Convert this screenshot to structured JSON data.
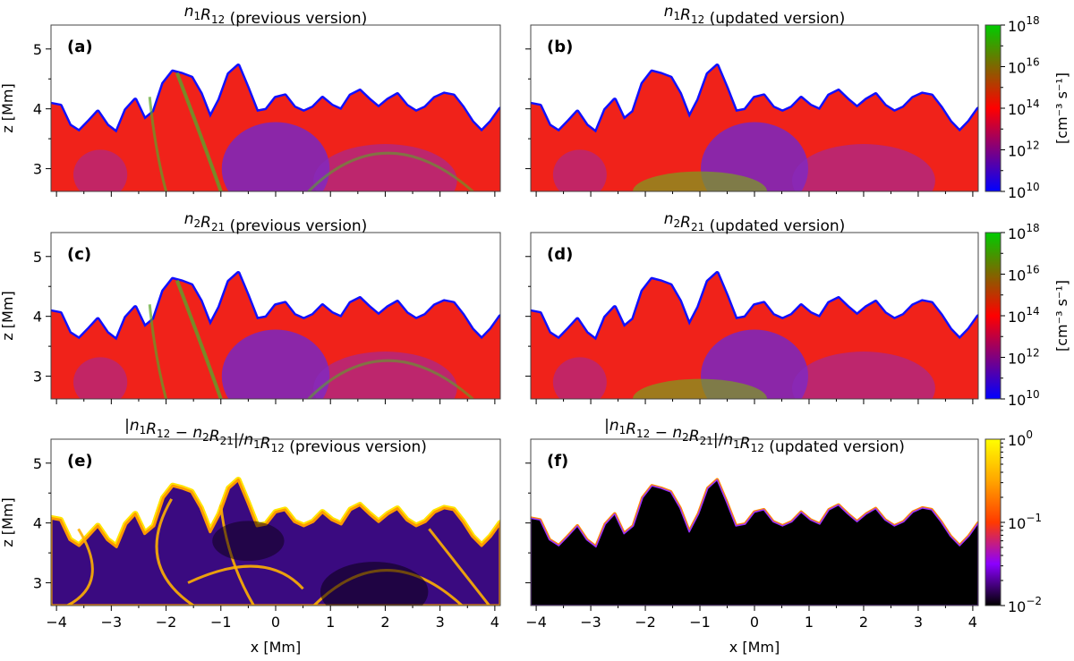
{
  "chart_data": [
    {
      "type": "heatmap",
      "panel_label": "(a)",
      "title_math": "n1R12",
      "title_suffix": "(previous version)",
      "xlabel": "",
      "ylabel": "z [Mm]",
      "xlim": [
        -4.1,
        4.1
      ],
      "ylim": [
        2.62,
        5.4
      ],
      "x_ticks": [
        -4,
        -3,
        -2,
        -1,
        0,
        1,
        2,
        3,
        4
      ],
      "y_ticks": [
        3,
        4,
        5
      ],
      "colormap": "blue-red-green",
      "colorbar": "rates"
    },
    {
      "type": "heatmap",
      "panel_label": "(b)",
      "title_math": "n1R12",
      "title_suffix": "(updated version)",
      "xlabel": "",
      "ylabel": "",
      "xlim": [
        -4.1,
        4.1
      ],
      "ylim": [
        2.62,
        5.4
      ],
      "x_ticks": [
        -4,
        -3,
        -2,
        -1,
        0,
        1,
        2,
        3,
        4
      ],
      "y_ticks": [
        3,
        4,
        5
      ],
      "colormap": "blue-red-green",
      "colorbar": "rates"
    },
    {
      "type": "heatmap",
      "panel_label": "(c)",
      "title_math": "n2R21",
      "title_suffix": "(previous version)",
      "xlabel": "",
      "ylabel": "z [Mm]",
      "xlim": [
        -4.1,
        4.1
      ],
      "ylim": [
        2.62,
        5.4
      ],
      "x_ticks": [
        -4,
        -3,
        -2,
        -1,
        0,
        1,
        2,
        3,
        4
      ],
      "y_ticks": [
        3,
        4,
        5
      ],
      "colormap": "blue-red-green",
      "colorbar": "rates"
    },
    {
      "type": "heatmap",
      "panel_label": "(d)",
      "title_math": "n2R21",
      "title_suffix": "(updated version)",
      "xlabel": "",
      "ylabel": "",
      "xlim": [
        -4.1,
        4.1
      ],
      "ylim": [
        2.62,
        5.4
      ],
      "x_ticks": [
        -4,
        -3,
        -2,
        -1,
        0,
        1,
        2,
        3,
        4
      ],
      "y_ticks": [
        3,
        4,
        5
      ],
      "colormap": "blue-red-green",
      "colorbar": "rates"
    },
    {
      "type": "heatmap",
      "panel_label": "(e)",
      "title_math": "diff",
      "title_suffix": "(previous version)",
      "xlabel": "x [Mm]",
      "ylabel": "z [Mm]",
      "xlim": [
        -4.1,
        4.1
      ],
      "ylim": [
        2.62,
        5.4
      ],
      "x_ticks": [
        -4,
        -3,
        -2,
        -1,
        0,
        1,
        2,
        3,
        4
      ],
      "y_ticks": [
        3,
        4,
        5
      ],
      "colormap": "gnuplot",
      "colorbar": "ratio"
    },
    {
      "type": "heatmap",
      "panel_label": "(f)",
      "title_math": "diff",
      "title_suffix": "(updated version)",
      "xlabel": "x [Mm]",
      "ylabel": "",
      "xlim": [
        -4.1,
        4.1
      ],
      "ylim": [
        2.62,
        5.4
      ],
      "x_ticks": [
        -4,
        -3,
        -2,
        -1,
        0,
        1,
        2,
        3,
        4
      ],
      "y_ticks": [
        3,
        4,
        5
      ],
      "colormap": "gnuplot",
      "colorbar": "ratio"
    }
  ],
  "colorbars": {
    "rates": {
      "unit_label": "[cm⁻³ s⁻¹]",
      "tick_exponents": [
        "10",
        "12",
        "14",
        "16",
        "18"
      ],
      "tick_base": "10",
      "range_log": [
        10,
        18
      ],
      "stops": [
        "#0000ff",
        "#ff0000",
        "#00cc00"
      ]
    },
    "ratio": {
      "unit_label": "",
      "tick_exponents": [
        "-2",
        "-1",
        "0"
      ],
      "tick_base": "10",
      "range_log": [
        -2,
        0
      ],
      "stops": [
        "#000000",
        "#8b00ff",
        "#ff3a00",
        "#ffa500",
        "#ffff00"
      ]
    }
  },
  "surface_profile_z": [
    4.08,
    4.05,
    3.72,
    3.62,
    3.78,
    3.95,
    3.72,
    3.6,
    3.98,
    4.15,
    3.82,
    3.95,
    4.42,
    4.62,
    4.58,
    4.52,
    4.25,
    3.85,
    4.15,
    4.58,
    4.72,
    4.35,
    3.95,
    3.98,
    4.18,
    4.22,
    4.02,
    3.95,
    4.02,
    4.18,
    4.05,
    3.98,
    4.22,
    4.3,
    4.15,
    4.02,
    4.15,
    4.24,
    4.05,
    3.95,
    4.02,
    4.18,
    4.25,
    4.22,
    4.02,
    3.78,
    3.62,
    3.78,
    4.0
  ]
}
